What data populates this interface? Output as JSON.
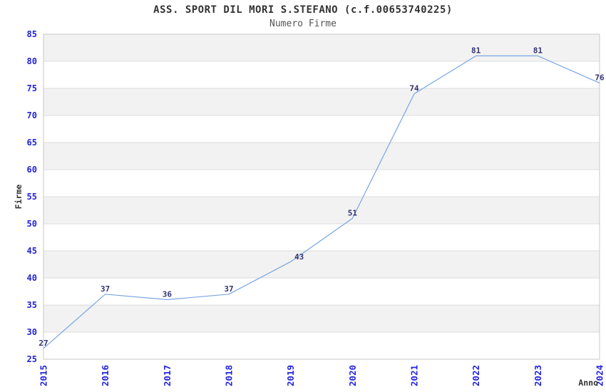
{
  "header": {
    "title": "ASS. SPORT DIL MORI S.STEFANO (c.f.00653740225)",
    "subtitle": "Numero Firme"
  },
  "chart_data": {
    "type": "line",
    "title": "ASS. SPORT DIL MORI S.STEFANO (c.f.00653740225)",
    "subtitle": "Numero Firme",
    "x": [
      "2015",
      "2016",
      "2017",
      "2018",
      "2019",
      "2020",
      "2021",
      "2022",
      "2023",
      "2024"
    ],
    "values": [
      27,
      37,
      36,
      37,
      43,
      51,
      74,
      81,
      81,
      76
    ],
    "xlabel": "Anno",
    "ylabel": "Firme",
    "ylim": [
      25,
      85
    ],
    "yticks": [
      25,
      30,
      35,
      40,
      45,
      50,
      55,
      60,
      65,
      70,
      75,
      80,
      85
    ],
    "grid": "horizontal alternating bands, gray band at top interval",
    "legend_position": "none",
    "point_labels_shown": true,
    "colors": {
      "line": "#78a5e1",
      "band_gray": "#f2f2f2",
      "band_white": "#ffffff",
      "gridline": "#dcdcdc",
      "plot_border": "#c8c8c8",
      "tick_label": "#2222dd",
      "point_label": "#333372",
      "axis_title": "#333333",
      "title": "#333333",
      "subtitle": "#555555",
      "background": "#ffffff"
    }
  }
}
